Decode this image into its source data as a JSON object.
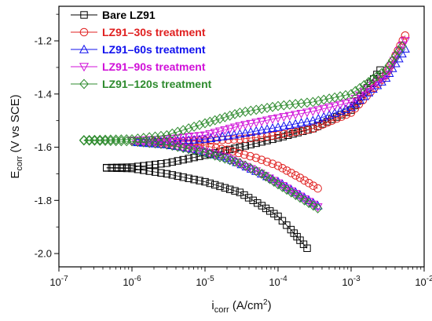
{
  "chart_data": {
    "type": "scatter",
    "x_scale": "log",
    "xlim": [
      1e-07,
      0.01
    ],
    "ylim": [
      -2.05,
      -1.07
    ],
    "x_ticks": [
      {
        "value": 1e-07,
        "base": "10",
        "exp": "-7"
      },
      {
        "value": 1e-06,
        "base": "10",
        "exp": "-6"
      },
      {
        "value": 1e-05,
        "base": "10",
        "exp": "-5"
      },
      {
        "value": 0.0001,
        "base": "10",
        "exp": "-4"
      },
      {
        "value": 0.001,
        "base": "10",
        "exp": "-3"
      },
      {
        "value": 0.01,
        "base": "10",
        "exp": "-2"
      }
    ],
    "y_ticks": [
      {
        "value": -2.0,
        "label": "-2.0"
      },
      {
        "value": -1.8,
        "label": "-1.8"
      },
      {
        "value": -1.6,
        "label": "-1.6"
      },
      {
        "value": -1.4,
        "label": "-1.4"
      },
      {
        "value": -1.2,
        "label": "-1.2"
      }
    ],
    "xlabel": {
      "main": "i",
      "sub": "corr",
      "unit_pre": " (A/cm",
      "sup": "2",
      "unit_post": ")"
    },
    "ylabel": {
      "main": "E",
      "sub": "corr",
      "unit": " (V vs SCE)"
    },
    "grid": false,
    "legend_position": "top-left",
    "series": [
      {
        "name": "Bare LZ91",
        "color": "#000000",
        "marker": "square",
        "anodic": {
          "x": [
            4.5e-07,
            1e-06,
            3e-06,
            1e-05,
            3e-05,
            0.0001,
            0.0003,
            0.001,
            0.0025
          ],
          "y": [
            -1.677,
            -1.675,
            -1.66,
            -1.63,
            -1.6,
            -1.565,
            -1.53,
            -1.46,
            -1.31
          ]
        },
        "cathodic": {
          "x": [
            4.5e-07,
            1e-06,
            3e-06,
            1e-05,
            3e-05,
            6e-05,
            0.0001,
            0.00015,
            0.0002,
            0.00025
          ],
          "y": [
            -1.678,
            -1.68,
            -1.7,
            -1.73,
            -1.77,
            -1.82,
            -1.86,
            -1.91,
            -1.95,
            -1.98
          ]
        }
      },
      {
        "name": "LZ91–30s treatment",
        "color": "#e02020",
        "marker": "circle",
        "anodic": {
          "x": [
            2e-06,
            5e-06,
            1e-05,
            3e-05,
            0.0001,
            0.0003,
            0.001,
            0.003,
            0.0055
          ],
          "y": [
            -1.578,
            -1.578,
            -1.575,
            -1.57,
            -1.555,
            -1.53,
            -1.47,
            -1.33,
            -1.18
          ]
        },
        "cathodic": {
          "x": [
            2e-06,
            5e-06,
            1e-05,
            2e-05,
            5e-05,
            0.0001,
            0.0002,
            0.00035
          ],
          "y": [
            -1.58,
            -1.585,
            -1.595,
            -1.61,
            -1.64,
            -1.67,
            -1.715,
            -1.755
          ]
        }
      },
      {
        "name": "LZ91–60s treatment",
        "color": "#1010ee",
        "marker": "triangle-up",
        "anodic": {
          "x": [
            1.2e-06,
            3e-06,
            1e-05,
            3e-05,
            0.0001,
            0.0003,
            0.001,
            0.003,
            0.0055
          ],
          "y": [
            -1.58,
            -1.578,
            -1.57,
            -1.55,
            -1.525,
            -1.5,
            -1.45,
            -1.34,
            -1.23
          ]
        },
        "cathodic": {
          "x": [
            1.2e-06,
            3e-06,
            8e-06,
            2e-05,
            5e-05,
            0.0001,
            0.0002,
            0.00035
          ],
          "y": [
            -1.582,
            -1.59,
            -1.61,
            -1.64,
            -1.69,
            -1.73,
            -1.78,
            -1.82
          ]
        }
      },
      {
        "name": "LZ91–90s treatment",
        "color": "#d010d8",
        "marker": "triangle-down",
        "anodic": {
          "x": [
            1e-06,
            3e-06,
            1e-05,
            3e-05,
            0.0001,
            0.0003,
            0.001,
            0.003,
            0.0055
          ],
          "y": [
            -1.575,
            -1.57,
            -1.555,
            -1.52,
            -1.49,
            -1.465,
            -1.43,
            -1.33,
            -1.2
          ]
        },
        "cathodic": {
          "x": [
            1e-06,
            3e-06,
            8e-06,
            2e-05,
            5e-05,
            0.0001,
            0.0002,
            0.00035
          ],
          "y": [
            -1.577,
            -1.59,
            -1.61,
            -1.64,
            -1.69,
            -1.735,
            -1.785,
            -1.825
          ]
        }
      },
      {
        "name": "LZ91–120s treatment",
        "color": "#2e8b2e",
        "marker": "diamond",
        "anodic": {
          "x": [
            2.2e-07,
            1e-06,
            3e-06,
            1e-05,
            3e-05,
            0.0001,
            0.0003,
            0.001,
            0.003,
            0.005
          ],
          "y": [
            -1.573,
            -1.57,
            -1.555,
            -1.51,
            -1.47,
            -1.445,
            -1.43,
            -1.4,
            -1.31,
            -1.22
          ]
        },
        "cathodic": {
          "x": [
            2.2e-07,
            1e-06,
            3e-06,
            1e-05,
            3e-05,
            6e-05,
            0.0001,
            0.0002,
            0.00035
          ],
          "y": [
            -1.575,
            -1.578,
            -1.59,
            -1.62,
            -1.66,
            -1.7,
            -1.74,
            -1.79,
            -1.83
          ]
        }
      }
    ]
  }
}
